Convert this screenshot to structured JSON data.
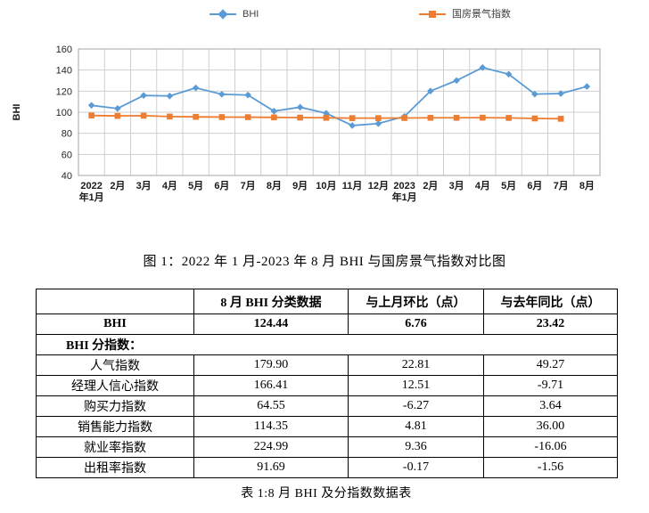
{
  "colors": {
    "bhi_line": "#5B9BD5",
    "climate_line": "#ED7D31",
    "grid": "#CFCFCF",
    "plot_border": "#A6A6A6"
  },
  "figure_caption": "图 1：2022 年 1 月-2023 年 8 月 BHI 与国房景气指数对比图",
  "chart_data": {
    "type": "line",
    "title": "图 1：2022 年 1 月-2023 年 8 月 BHI 与国房景气指数对比图",
    "xlabel": "",
    "ylabel": "BHI",
    "ylim": [
      40,
      160
    ],
    "ytick_step": 20,
    "grid": true,
    "legend_position": "top",
    "categories": [
      "2022\n年1月",
      "2月",
      "3月",
      "4月",
      "5月",
      "6月",
      "7月",
      "8月",
      "9月",
      "10月",
      "11月",
      "12月",
      "2023\n年1月",
      "2月",
      "3月",
      "4月",
      "5月",
      "6月",
      "7月",
      "8月"
    ],
    "series": [
      {
        "name": "BHI",
        "marker": "diamond",
        "color": "#5B9BD5",
        "values": [
          106.5,
          103.5,
          115.9,
          115.4,
          123.1,
          117.0,
          116.3,
          101.0,
          104.8,
          99.0,
          87.4,
          89.2,
          96.0,
          120.1,
          130.1,
          142.4,
          136.1,
          117.2,
          117.7,
          124.4
        ]
      },
      {
        "name": "国房景气指数",
        "marker": "square",
        "color": "#ED7D31",
        "values": [
          96.9,
          96.5,
          96.7,
          95.9,
          95.6,
          95.4,
          95.3,
          95.1,
          94.9,
          94.7,
          94.4,
          94.4,
          94.5,
          94.7,
          94.7,
          94.8,
          94.6,
          94.1,
          93.8,
          null
        ]
      }
    ]
  },
  "table": {
    "headers": [
      "",
      "8 月 BHI 分类数据",
      "与上月环比（点）",
      "与去年同比（点）"
    ],
    "rows": [
      {
        "label": "BHI",
        "bold": true,
        "cells": [
          "124.44",
          "6.76",
          "23.42"
        ]
      },
      {
        "label": "BHI 分指数：",
        "bold": true,
        "span": true
      },
      {
        "label": "人气指数",
        "cells": [
          "179.90",
          "22.81",
          "49.27"
        ]
      },
      {
        "label": "经理人信心指数",
        "cells": [
          "166.41",
          "12.51",
          "-9.71"
        ]
      },
      {
        "label": "购买力指数",
        "cells": [
          "64.55",
          "-6.27",
          "3.64"
        ]
      },
      {
        "label": "销售能力指数",
        "cells": [
          "114.35",
          "4.81",
          "36.00"
        ]
      },
      {
        "label": "就业率指数",
        "cells": [
          "224.99",
          "9.36",
          "-16.06"
        ]
      },
      {
        "label": "出租率指数",
        "cells": [
          "91.69",
          "-0.17",
          "-1.56"
        ]
      }
    ],
    "caption": "表 1:8 月 BHI 及分指数数据表"
  }
}
